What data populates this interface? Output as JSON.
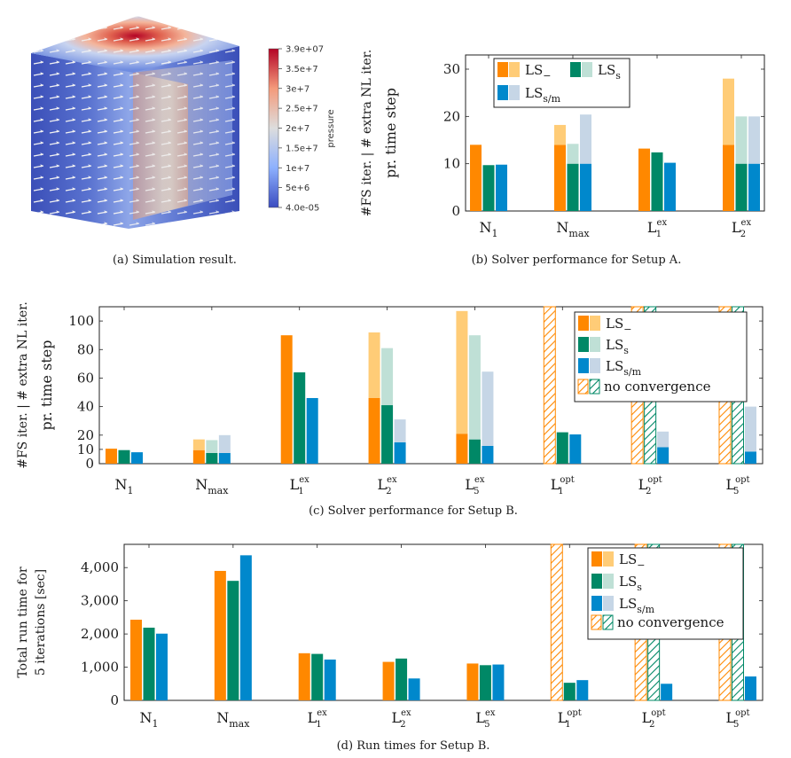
{
  "colors": {
    "ls_minus": "#ff8800",
    "ls_minus_light": "#ffcc77",
    "ls_s": "#008866",
    "ls_s_light": "#bfe0d6",
    "ls_sm": "#0088cc",
    "ls_sm_light": "#c6d6e6",
    "hatch_orange": "#ff8800",
    "hatch_green": "#008866"
  },
  "legend": {
    "ls_minus": {
      "base": "LS",
      "sub": "−"
    },
    "ls_s": {
      "base": "LS",
      "sub": "s"
    },
    "ls_sm": {
      "base": "LS",
      "sub": "s/m"
    },
    "no_conv": "no convergence"
  },
  "panel_a": {
    "caption": "(a)  Simulation result.",
    "colorbar_title": "pressure",
    "colorbar_ticks": [
      "3.9e+07",
      "3.5e+7",
      "3e+7",
      "2.5e+7",
      "2e+7",
      "1.5e+7",
      "1e+7",
      "5e+6",
      "4.0e-05"
    ]
  },
  "chart_data": [
    {
      "id": "b",
      "type": "bar",
      "title": "(b)  Solver performance for Setup A.",
      "ylabel_top": "#FS iter. | # extra NL iter.",
      "ylabel_bottom": "pr. time step",
      "ylim": [
        0,
        33
      ],
      "yticks": [
        0,
        10,
        20,
        30
      ],
      "categories": [
        {
          "base": "N",
          "sub": "1",
          "sup": ""
        },
        {
          "base": "N",
          "sub": "max",
          "sup": ""
        },
        {
          "base": "L",
          "sub": "1",
          "sup": "ex"
        },
        {
          "base": "L",
          "sub": "2",
          "sup": "ex"
        }
      ],
      "series": [
        {
          "name": "LS−",
          "fs": [
            14,
            14,
            13.2,
            14
          ],
          "extra": [
            0,
            4.2,
            0,
            14
          ],
          "nc": [
            false,
            false,
            false,
            false
          ]
        },
        {
          "name": "LSs",
          "fs": [
            9.7,
            10,
            12.4,
            10
          ],
          "extra": [
            0,
            4.2,
            0,
            10
          ],
          "nc": [
            false,
            false,
            false,
            false
          ]
        },
        {
          "name": "LSs/m",
          "fs": [
            9.8,
            10,
            10.2,
            10
          ],
          "extra": [
            0,
            10.4,
            0,
            10
          ],
          "nc": [
            false,
            false,
            false,
            false
          ]
        }
      ]
    },
    {
      "id": "c",
      "type": "bar",
      "title": "(c)  Solver performance for Setup B.",
      "ylabel_top": "#FS iter. | # extra NL iter.",
      "ylabel_bottom": "pr. time step",
      "ylim": [
        0,
        110
      ],
      "yticks": [
        0,
        10,
        20,
        40,
        60,
        80,
        100
      ],
      "categories": [
        {
          "base": "N",
          "sub": "1",
          "sup": ""
        },
        {
          "base": "N",
          "sub": "max",
          "sup": ""
        },
        {
          "base": "L",
          "sub": "1",
          "sup": "ex"
        },
        {
          "base": "L",
          "sub": "2",
          "sup": "ex"
        },
        {
          "base": "L",
          "sub": "5",
          "sup": "ex"
        },
        {
          "base": "L",
          "sub": "1",
          "sup": "opt"
        },
        {
          "base": "L",
          "sub": "2",
          "sup": "opt"
        },
        {
          "base": "L",
          "sub": "5",
          "sup": "opt"
        }
      ],
      "series": [
        {
          "name": "LS−",
          "fs": [
            10.5,
            9.5,
            90,
            46,
            21,
            0,
            0,
            0
          ],
          "extra": [
            0,
            7.5,
            0,
            46,
            86,
            0,
            0,
            0
          ],
          "nc": [
            false,
            false,
            false,
            false,
            false,
            true,
            true,
            true
          ]
        },
        {
          "name": "LSs",
          "fs": [
            9.5,
            7.5,
            64,
            41,
            17,
            22,
            0,
            0
          ],
          "extra": [
            0,
            9,
            0,
            40,
            73,
            0,
            0,
            0
          ],
          "nc": [
            false,
            false,
            false,
            false,
            false,
            false,
            true,
            true
          ]
        },
        {
          "name": "LSs/m",
          "fs": [
            8,
            7.5,
            46,
            15,
            12.5,
            20.5,
            11.5,
            8.5
          ],
          "extra": [
            0,
            12.5,
            0,
            16,
            52,
            0,
            11,
            31.5
          ],
          "nc": [
            false,
            false,
            false,
            false,
            false,
            false,
            false,
            false
          ]
        }
      ]
    },
    {
      "id": "d",
      "type": "bar",
      "title": "(d)  Run times for Setup B.",
      "ylabel_top": "Total run time for",
      "ylabel_bottom": "5 iterations [sec]",
      "ylim": [
        0,
        4700
      ],
      "yticks": [
        0,
        1000,
        2000,
        3000,
        4000
      ],
      "ytick_labels": [
        "0",
        "1,000",
        "2,000",
        "3,000",
        "4,000"
      ],
      "categories": [
        {
          "base": "N",
          "sub": "1",
          "sup": ""
        },
        {
          "base": "N",
          "sub": "max",
          "sup": ""
        },
        {
          "base": "L",
          "sub": "1",
          "sup": "ex"
        },
        {
          "base": "L",
          "sub": "2",
          "sup": "ex"
        },
        {
          "base": "L",
          "sub": "5",
          "sup": "ex"
        },
        {
          "base": "L",
          "sub": "1",
          "sup": "opt"
        },
        {
          "base": "L",
          "sub": "2",
          "sup": "opt"
        },
        {
          "base": "L",
          "sub": "5",
          "sup": "opt"
        }
      ],
      "series": [
        {
          "name": "LS−",
          "fs": [
            2430,
            3900,
            1420,
            1160,
            1110,
            0,
            0,
            0
          ],
          "extra": [
            0,
            0,
            0,
            0,
            0,
            0,
            0,
            0
          ],
          "nc": [
            false,
            false,
            false,
            false,
            false,
            true,
            true,
            true
          ]
        },
        {
          "name": "LSs",
          "fs": [
            2190,
            3600,
            1400,
            1260,
            1060,
            530,
            0,
            0
          ],
          "extra": [
            0,
            0,
            0,
            0,
            0,
            0,
            0,
            0
          ],
          "nc": [
            false,
            false,
            false,
            false,
            false,
            false,
            true,
            true
          ]
        },
        {
          "name": "LSs/m",
          "fs": [
            2010,
            4370,
            1230,
            660,
            1080,
            610,
            500,
            720
          ],
          "extra": [
            0,
            0,
            0,
            0,
            0,
            0,
            0,
            0
          ],
          "nc": [
            false,
            false,
            false,
            false,
            false,
            false,
            false,
            false
          ]
        }
      ]
    }
  ]
}
